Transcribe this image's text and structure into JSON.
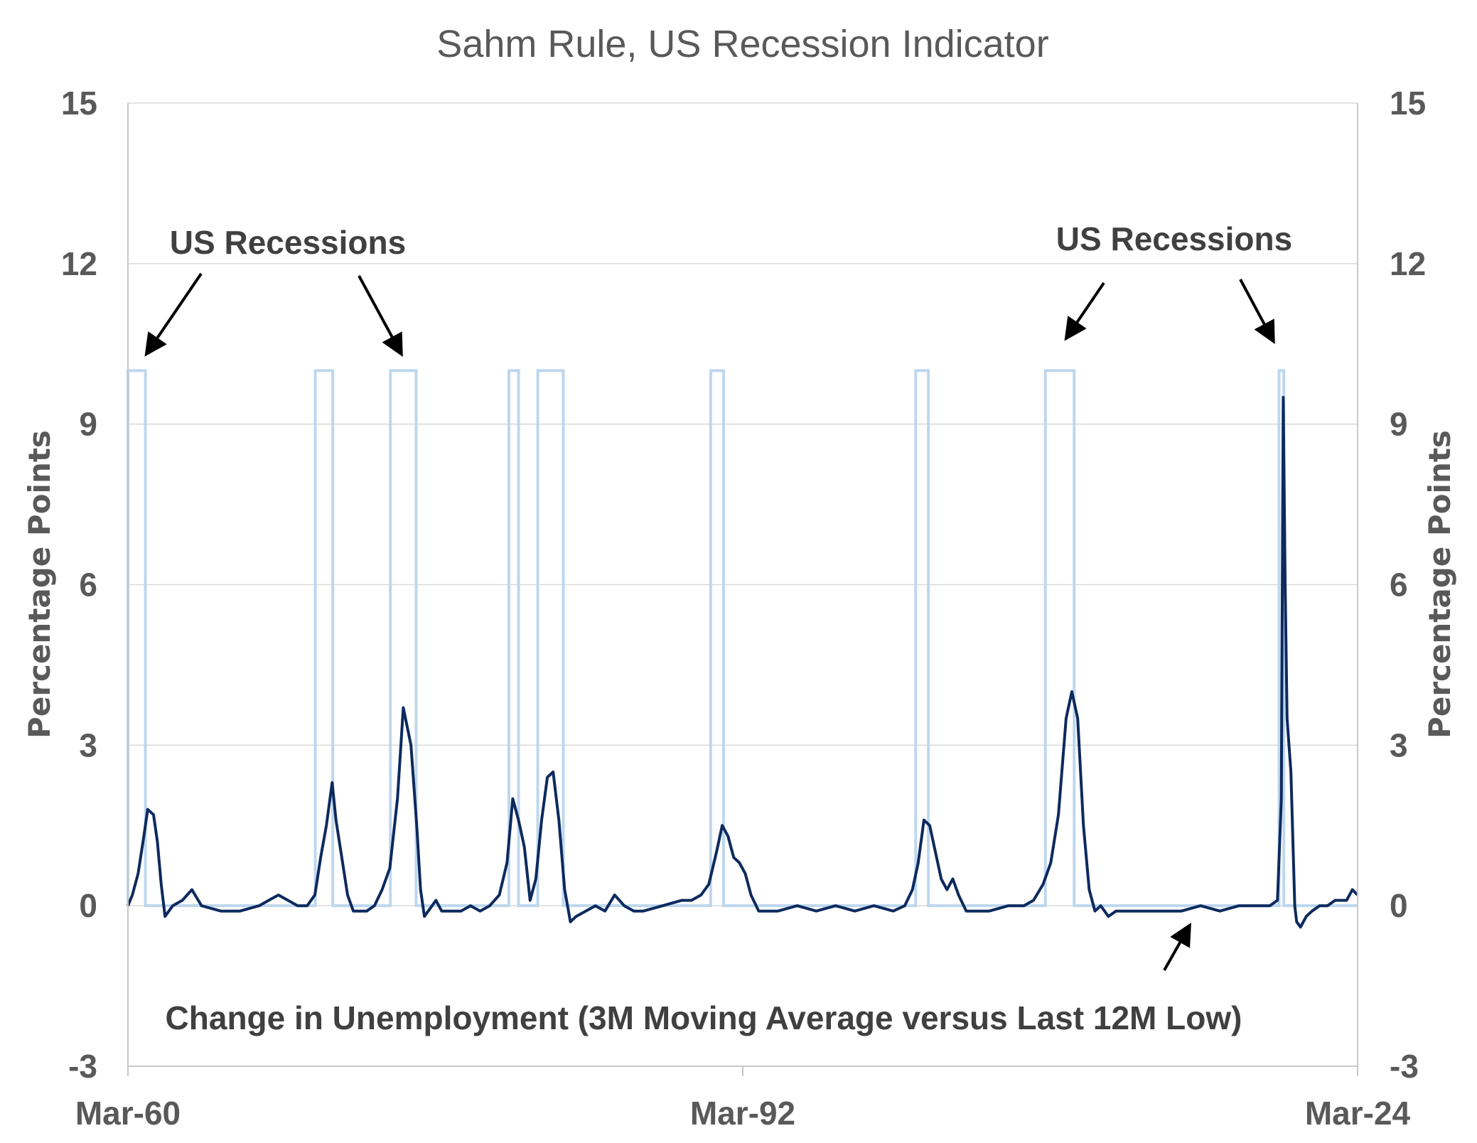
{
  "chart_data": {
    "type": "line",
    "title": "Sahm Rule, US Recession Indicator",
    "ylabel_left": "Percentage   Points",
    "ylabel_right": "Percentage  Points",
    "y_ticks_left": [
      "15",
      "12",
      "9",
      "6",
      "3",
      "0",
      "-3"
    ],
    "y_ticks_right": [
      "15",
      "12",
      "9",
      "6",
      "3",
      "0",
      "-3"
    ],
    "y_tick_values": [
      15,
      12,
      9,
      6,
      3,
      0,
      -3
    ],
    "ylim": [
      -3,
      15
    ],
    "x_tick_labels": [
      "Mar-60",
      "Mar-92",
      "Mar-24"
    ],
    "x_tick_values": [
      1960.17,
      1992.17,
      2024.17
    ],
    "xlim": [
      1960.17,
      2024.17
    ],
    "grid": "horizontal",
    "annotations": {
      "recessions_left": "US Recessions",
      "recessions_right": "US Recessions",
      "series_label": "Change in Unemployment (3M Moving Average versus Last 12M Low)"
    },
    "series": [
      {
        "name": "US Recessions",
        "style": "step",
        "color": "#bdd7ee",
        "value_on": 10,
        "value_off": 0,
        "periods": [
          [
            1960.17,
            1961.08
          ],
          [
            1969.92,
            1970.83
          ],
          [
            1973.83,
            1975.17
          ],
          [
            1980.0,
            1980.5
          ],
          [
            1981.5,
            1982.83
          ],
          [
            1990.5,
            1991.17
          ],
          [
            2001.17,
            2001.83
          ],
          [
            2007.92,
            2009.42
          ],
          [
            2020.08,
            2020.33
          ]
        ]
      },
      {
        "name": "Change in Unemployment (3M Moving Average versus Last 12M Low)",
        "style": "line",
        "color": "#0d2a5e",
        "x": [
          1960.17,
          1960.4,
          1960.7,
          1961.0,
          1961.2,
          1961.5,
          1961.7,
          1961.9,
          1962.1,
          1962.5,
          1963.0,
          1963.5,
          1964.0,
          1965.0,
          1966.0,
          1967.0,
          1967.5,
          1968.0,
          1968.5,
          1969.0,
          1969.5,
          1969.9,
          1970.2,
          1970.5,
          1970.8,
          1971.0,
          1971.3,
          1971.6,
          1971.9,
          1972.2,
          1972.6,
          1973.0,
          1973.4,
          1973.8,
          1974.2,
          1974.5,
          1974.9,
          1975.2,
          1975.4,
          1975.6,
          1975.8,
          1976.0,
          1976.2,
          1976.5,
          1977.0,
          1977.5,
          1978.0,
          1978.5,
          1979.0,
          1979.5,
          1979.9,
          1980.2,
          1980.5,
          1980.8,
          1981.1,
          1981.4,
          1981.7,
          1982.0,
          1982.3,
          1982.6,
          1982.9,
          1983.2,
          1983.5,
          1984.0,
          1984.5,
          1985.0,
          1985.5,
          1986.0,
          1986.5,
          1987.0,
          1988.0,
          1989.0,
          1989.5,
          1990.0,
          1990.4,
          1990.8,
          1991.1,
          1991.4,
          1991.7,
          1992.0,
          1992.3,
          1992.6,
          1993.0,
          1993.5,
          1994.0,
          1995.0,
          1996.0,
          1997.0,
          1998.0,
          1999.0,
          2000.0,
          2000.6,
          2001.0,
          2001.3,
          2001.6,
          2001.9,
          2002.2,
          2002.5,
          2002.8,
          2003.1,
          2003.4,
          2003.8,
          2004.2,
          2005.0,
          2006.0,
          2006.8,
          2007.3,
          2007.8,
          2008.2,
          2008.6,
          2009.0,
          2009.3,
          2009.6,
          2009.9,
          2010.2,
          2010.5,
          2010.8,
          2011.2,
          2011.6,
          2012.0,
          2013.0,
          2014.0,
          2015.0,
          2016.0,
          2017.0,
          2018.0,
          2019.0,
          2019.6,
          2020.0,
          2020.2,
          2020.3,
          2020.4,
          2020.5,
          2020.7,
          2020.9,
          2021.0,
          2021.2,
          2021.5,
          2021.8,
          2022.2,
          2022.6,
          2023.0,
          2023.3,
          2023.6,
          2023.9,
          2024.17
        ],
        "y": [
          0.0,
          0.2,
          0.6,
          1.3,
          1.8,
          1.7,
          1.2,
          0.4,
          -0.2,
          0.0,
          0.1,
          0.3,
          0.0,
          -0.1,
          -0.1,
          0.0,
          0.1,
          0.2,
          0.1,
          0.0,
          0.0,
          0.2,
          0.9,
          1.5,
          2.3,
          1.6,
          0.9,
          0.2,
          -0.1,
          -0.1,
          -0.1,
          0.0,
          0.3,
          0.7,
          2.0,
          3.7,
          3.0,
          1.5,
          0.3,
          -0.2,
          -0.1,
          0.0,
          0.1,
          -0.1,
          -0.1,
          -0.1,
          0.0,
          -0.1,
          0.0,
          0.2,
          0.8,
          2.0,
          1.6,
          1.1,
          0.1,
          0.5,
          1.6,
          2.4,
          2.5,
          1.6,
          0.3,
          -0.3,
          -0.2,
          -0.1,
          0.0,
          -0.1,
          0.2,
          0.0,
          -0.1,
          -0.1,
          0.0,
          0.1,
          0.1,
          0.2,
          0.4,
          1.0,
          1.5,
          1.3,
          0.9,
          0.8,
          0.6,
          0.2,
          -0.1,
          -0.1,
          -0.1,
          0.0,
          -0.1,
          0.0,
          -0.1,
          0.0,
          -0.1,
          0.0,
          0.3,
          0.8,
          1.6,
          1.5,
          1.0,
          0.5,
          0.3,
          0.5,
          0.2,
          -0.1,
          -0.1,
          -0.1,
          0.0,
          0.0,
          0.1,
          0.4,
          0.8,
          1.7,
          3.5,
          4.0,
          3.5,
          1.5,
          0.3,
          -0.1,
          0.0,
          -0.2,
          -0.1,
          -0.1,
          -0.1,
          -0.1,
          -0.1,
          0.0,
          -0.1,
          0.0,
          0.0,
          0.0,
          0.1,
          2.0,
          9.5,
          6.0,
          3.5,
          2.5,
          0.0,
          -0.3,
          -0.4,
          -0.2,
          -0.1,
          0.0,
          0.0,
          0.1,
          0.1,
          0.1,
          0.3,
          0.2
        ]
      }
    ]
  }
}
